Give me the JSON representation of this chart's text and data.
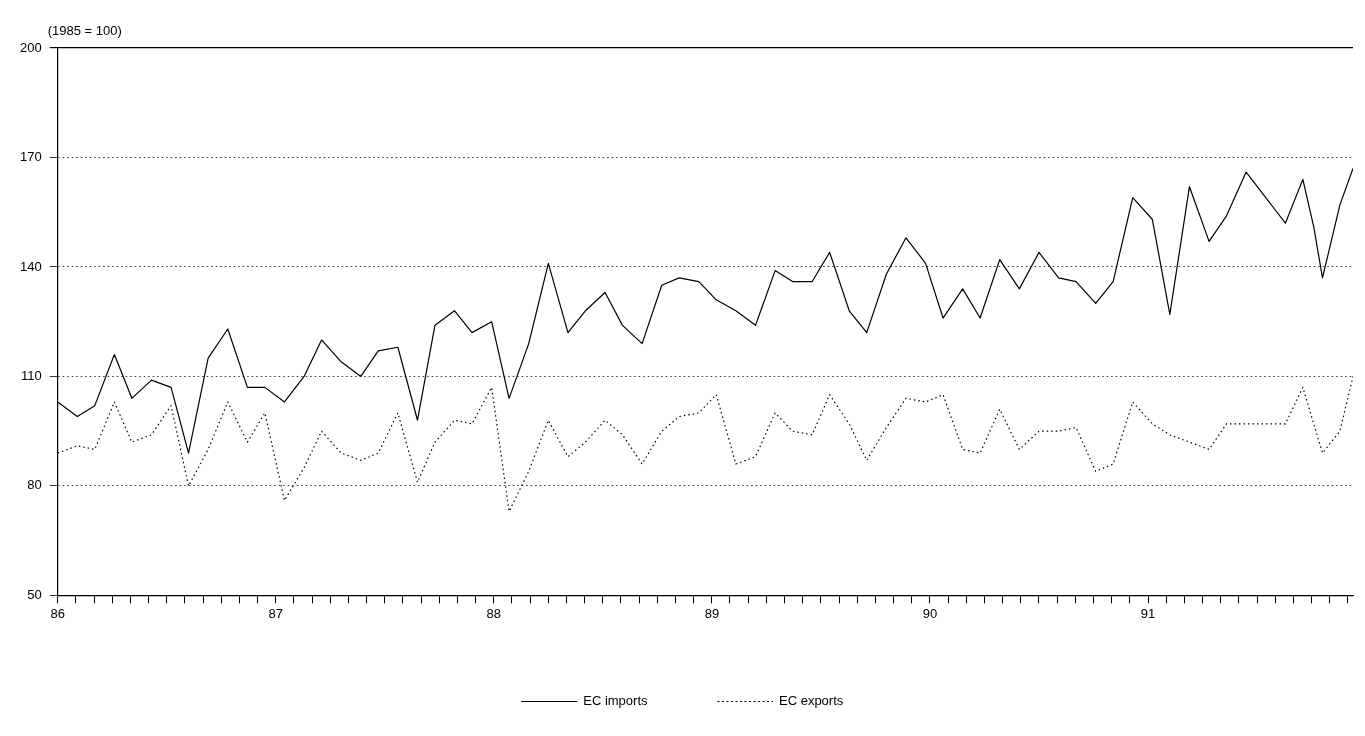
{
  "chart_data": {
    "type": "line",
    "ylabel": "(1985 = 100)",
    "xlim": [
      86,
      91.94
    ],
    "ylim": [
      50,
      200
    ],
    "yticks": [
      50,
      80,
      110,
      140,
      170,
      200
    ],
    "xticks": [
      86,
      {
        "value": 86.083,
        "label": null
      },
      {
        "value": 86.167,
        "label": null
      },
      {
        "value": 86.25,
        "label": null
      },
      {
        "value": 86.333,
        "label": null
      },
      {
        "value": 86.417,
        "label": null
      },
      {
        "value": 86.5,
        "label": null
      },
      {
        "value": 86.583,
        "label": null
      },
      {
        "value": 86.667,
        "label": null
      },
      {
        "value": 86.75,
        "label": null
      },
      {
        "value": 86.833,
        "label": null
      },
      {
        "value": 86.917,
        "label": null
      },
      87,
      {
        "value": 87.083,
        "label": null
      },
      {
        "value": 87.167,
        "label": null
      },
      {
        "value": 87.25,
        "label": null
      },
      {
        "value": 87.333,
        "label": null
      },
      {
        "value": 87.417,
        "label": null
      },
      {
        "value": 87.5,
        "label": null
      },
      {
        "value": 87.583,
        "label": null
      },
      {
        "value": 87.667,
        "label": null
      },
      {
        "value": 87.75,
        "label": null
      },
      {
        "value": 87.833,
        "label": null
      },
      {
        "value": 87.917,
        "label": null
      },
      88,
      {
        "value": 88.083,
        "label": null
      },
      {
        "value": 88.167,
        "label": null
      },
      {
        "value": 88.25,
        "label": null
      },
      {
        "value": 88.333,
        "label": null
      },
      {
        "value": 88.417,
        "label": null
      },
      {
        "value": 88.5,
        "label": null
      },
      {
        "value": 88.583,
        "label": null
      },
      {
        "value": 88.667,
        "label": null
      },
      {
        "value": 88.75,
        "label": null
      },
      {
        "value": 88.833,
        "label": null
      },
      {
        "value": 88.917,
        "label": null
      },
      89,
      {
        "value": 89.083,
        "label": null
      },
      {
        "value": 89.167,
        "label": null
      },
      {
        "value": 89.25,
        "label": null
      },
      {
        "value": 89.333,
        "label": null
      },
      {
        "value": 89.417,
        "label": null
      },
      {
        "value": 89.5,
        "label": null
      },
      {
        "value": 89.583,
        "label": null
      },
      {
        "value": 89.667,
        "label": null
      },
      {
        "value": 89.75,
        "label": null
      },
      {
        "value": 89.833,
        "label": null
      },
      {
        "value": 89.917,
        "label": null
      },
      90,
      {
        "value": 90.083,
        "label": null
      },
      {
        "value": 90.167,
        "label": null
      },
      {
        "value": 90.25,
        "label": null
      },
      {
        "value": 90.333,
        "label": null
      },
      {
        "value": 90.417,
        "label": null
      },
      {
        "value": 90.5,
        "label": null
      },
      {
        "value": 90.583,
        "label": null
      },
      {
        "value": 90.667,
        "label": null
      },
      {
        "value": 90.75,
        "label": null
      },
      {
        "value": 90.833,
        "label": null
      },
      {
        "value": 90.917,
        "label": null
      },
      91,
      {
        "value": 91.083,
        "label": null
      },
      {
        "value": 91.167,
        "label": null
      },
      {
        "value": 91.25,
        "label": null
      },
      {
        "value": 91.333,
        "label": null
      },
      {
        "value": 91.417,
        "label": null
      },
      {
        "value": 91.5,
        "label": null
      },
      {
        "value": 91.583,
        "label": null
      },
      {
        "value": 91.667,
        "label": null
      },
      {
        "value": 91.75,
        "label": null
      },
      {
        "value": 91.833,
        "label": null
      },
      {
        "value": 91.917,
        "label": null
      }
    ],
    "grid": "y",
    "legend": "bottom",
    "marker": "none",
    "series": [
      {
        "name": "EC imports",
        "color": "#000000",
        "line_style": "solid",
        "x": [
          86.0,
          86.09,
          86.17,
          86.26,
          86.34,
          86.43,
          86.52,
          86.6,
          86.69,
          86.78,
          86.87,
          86.95,
          87.04,
          87.13,
          87.21,
          87.3,
          87.39,
          87.47,
          87.56,
          87.65,
          87.73,
          87.82,
          87.9,
          87.99,
          88.07,
          88.16,
          88.25,
          88.34,
          88.42,
          88.51,
          88.59,
          88.68,
          88.77,
          88.85,
          88.94,
          89.02,
          89.11,
          89.2,
          89.29,
          89.37,
          89.46,
          89.54,
          89.63,
          89.71,
          89.8,
          89.89,
          89.98,
          90.06,
          90.15,
          90.23,
          90.32,
          90.41,
          90.5,
          90.59,
          90.67,
          90.76,
          90.84,
          90.93,
          91.02,
          91.1,
          91.19,
          91.28,
          91.36,
          91.45,
          91.54,
          91.63,
          91.71,
          91.76,
          91.8,
          91.88,
          91.94
        ],
        "values": [
          103,
          99,
          102,
          116,
          104,
          109,
          107,
          89,
          115,
          123,
          107,
          107,
          103,
          110,
          120,
          114,
          110,
          117,
          118,
          98,
          124,
          128,
          122,
          125,
          104,
          119,
          141,
          122,
          128,
          133,
          124,
          119,
          135,
          137,
          136,
          131,
          128,
          124,
          139,
          136,
          136,
          144,
          128,
          122,
          138,
          148,
          141,
          126,
          134,
          126,
          142,
          134,
          144,
          137,
          136,
          130,
          136,
          159,
          153,
          127,
          162,
          147,
          154,
          166,
          159,
          152,
          164,
          151,
          137,
          157,
          167
        ]
      },
      {
        "name": "EC exports",
        "color": "#000000",
        "line_style": "dotted",
        "x": [
          86.0,
          86.09,
          86.17,
          86.26,
          86.34,
          86.43,
          86.52,
          86.6,
          86.69,
          86.78,
          86.87,
          86.95,
          87.04,
          87.13,
          87.21,
          87.3,
          87.39,
          87.47,
          87.56,
          87.65,
          87.73,
          87.82,
          87.9,
          87.99,
          88.07,
          88.16,
          88.25,
          88.34,
          88.42,
          88.51,
          88.59,
          88.68,
          88.77,
          88.85,
          88.94,
          89.02,
          89.11,
          89.2,
          89.29,
          89.37,
          89.46,
          89.54,
          89.63,
          89.71,
          89.8,
          89.89,
          89.98,
          90.06,
          90.15,
          90.23,
          90.32,
          90.41,
          90.5,
          90.59,
          90.67,
          90.76,
          90.84,
          90.93,
          91.02,
          91.1,
          91.19,
          91.28,
          91.36,
          91.45,
          91.54,
          91.63,
          91.71,
          91.8,
          91.88,
          91.94
        ],
        "values": [
          89,
          91,
          90,
          103,
          92,
          94,
          102,
          80,
          90,
          103,
          92,
          100,
          76,
          85,
          95,
          89,
          87,
          89,
          100,
          81,
          92,
          98,
          97,
          107,
          73,
          84,
          98,
          88,
          92,
          98,
          94,
          86,
          95,
          99,
          100,
          105,
          86,
          88,
          100,
          95,
          94,
          105,
          97,
          87,
          96,
          104,
          103,
          105,
          90,
          89,
          101,
          90,
          95,
          95,
          96,
          84,
          86,
          103,
          97,
          94,
          92,
          90,
          97,
          97,
          97,
          97,
          107,
          89,
          95,
          110
        ]
      }
    ]
  }
}
